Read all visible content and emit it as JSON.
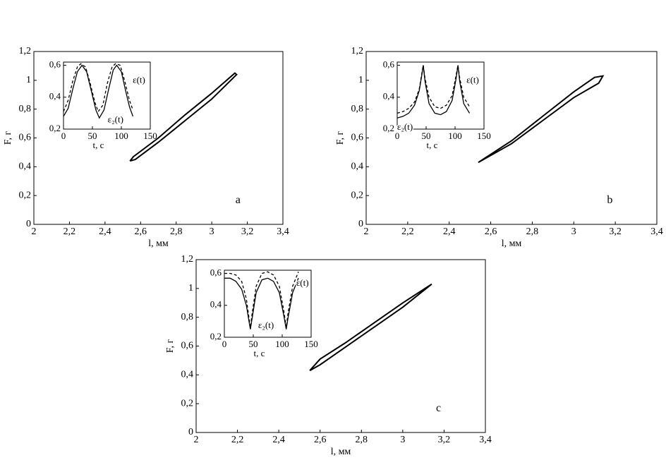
{
  "chart_data": [
    {
      "type": "line",
      "label": "a",
      "xlabel": "l, мм",
      "ylabel": "F, г",
      "xlim": [
        2,
        3.4
      ],
      "ylim": [
        0,
        1.2
      ],
      "xticks": [
        2,
        {
          "value": 2.2,
          "label": "2,2"
        },
        {
          "value": 2.4,
          "label": "2,4"
        },
        {
          "value": 2.6,
          "label": "2,6"
        },
        {
          "value": 2.8,
          "label": "2,8"
        },
        3,
        {
          "value": 3.2,
          "label": "3,2"
        },
        {
          "value": 3.4,
          "label": "3,4"
        }
      ],
      "yticks": [
        0,
        {
          "value": 0.2,
          "label": "0,2"
        },
        {
          "value": 0.4,
          "label": "0,4"
        },
        {
          "value": 0.6,
          "label": "0,6"
        },
        {
          "value": 0.8,
          "label": "0,8"
        },
        1,
        {
          "value": 1.2,
          "label": "1,2"
        }
      ],
      "series": [
        {
          "color": "#000000",
          "x": [
            2.54,
            2.56,
            2.7,
            2.85,
            3.0,
            3.13,
            3.14,
            3.0,
            2.85,
            2.7,
            2.57,
            2.54
          ],
          "values": [
            0.44,
            0.47,
            0.6,
            0.76,
            0.91,
            1.05,
            1.04,
            0.87,
            0.72,
            0.57,
            0.45,
            0.44
          ]
        }
      ],
      "inset": {
        "type": "line",
        "xlabel": "t, c",
        "xlim": [
          0,
          150
        ],
        "ylim": [
          0.2,
          0.62
        ],
        "xticks": [
          0,
          50,
          100,
          150
        ],
        "yticks": [
          {
            "value": 0.2,
            "label": "0,2"
          },
          {
            "value": 0.4,
            "label": "0,4"
          },
          {
            "value": 0.6,
            "label": "0,6"
          }
        ],
        "series": [
          {
            "name": "ε(t)",
            "color": "#000000",
            "dash": false,
            "x": [
              0,
              8,
              16,
              24,
              32,
              40,
              48,
              56,
              62,
              70,
              78,
              86,
              92,
              100,
              108,
              114,
              120
            ],
            "values": [
              0.28,
              0.33,
              0.45,
              0.56,
              0.6,
              0.56,
              0.44,
              0.32,
              0.27,
              0.32,
              0.45,
              0.57,
              0.6,
              0.56,
              0.43,
              0.34,
              0.28
            ]
          },
          {
            "name": "ε₂(t)",
            "color": "#000000",
            "dash": true,
            "x": [
              0,
              8,
              16,
              24,
              30,
              38,
              46,
              54,
              60,
              68,
              76,
              84,
              90,
              98,
              106,
              114,
              120
            ],
            "values": [
              0.31,
              0.38,
              0.5,
              0.59,
              0.61,
              0.59,
              0.49,
              0.37,
              0.31,
              0.35,
              0.49,
              0.59,
              0.61,
              0.6,
              0.5,
              0.38,
              0.32
            ]
          }
        ]
      }
    },
    {
      "type": "line",
      "label": "b",
      "xlabel": "l, мм",
      "ylabel": "F, г",
      "xlim": [
        2,
        3.4
      ],
      "ylim": [
        0,
        1.2
      ],
      "xticks": [
        2,
        {
          "value": 2.2,
          "label": "2,2"
        },
        {
          "value": 2.4,
          "label": "2,4"
        },
        {
          "value": 2.6,
          "label": "2,6"
        },
        {
          "value": 2.8,
          "label": "2,8"
        },
        3,
        {
          "value": 3.2,
          "label": "3,2"
        },
        {
          "value": 3.4,
          "label": "3,4"
        }
      ],
      "yticks": [
        0,
        {
          "value": 0.2,
          "label": "0,2"
        },
        {
          "value": 0.4,
          "label": "0,4"
        },
        {
          "value": 0.6,
          "label": "0,6"
        },
        {
          "value": 0.8,
          "label": "0,8"
        },
        1,
        {
          "value": 1.2,
          "label": "1,2"
        }
      ],
      "series": [
        {
          "color": "#000000",
          "x": [
            2.54,
            2.7,
            2.85,
            3.0,
            3.1,
            3.14,
            3.12,
            3.0,
            2.85,
            2.7,
            2.54
          ],
          "values": [
            0.43,
            0.58,
            0.75,
            0.92,
            1.02,
            1.03,
            0.98,
            0.88,
            0.72,
            0.56,
            0.43
          ]
        }
      ],
      "inset": {
        "type": "line",
        "xlabel": "t, c",
        "xlim": [
          0,
          150
        ],
        "ylim": [
          0.2,
          0.62
        ],
        "xticks": [
          0,
          50,
          100,
          150
        ],
        "yticks": [
          {
            "value": 0.2,
            "label": "0,2"
          },
          {
            "value": 0.4,
            "label": "0,4"
          },
          {
            "value": 0.6,
            "label": "0,6"
          }
        ],
        "series": [
          {
            "name": "ε(t)",
            "color": "#000000",
            "dash": false,
            "x": [
              0,
              10,
              20,
              30,
              38,
              43,
              45,
              48,
              55,
              65,
              75,
              85,
              95,
              102,
              105,
              108,
              115,
              125
            ],
            "values": [
              0.27,
              0.28,
              0.3,
              0.35,
              0.44,
              0.55,
              0.6,
              0.5,
              0.36,
              0.3,
              0.29,
              0.31,
              0.38,
              0.52,
              0.6,
              0.5,
              0.36,
              0.3
            ]
          },
          {
            "name": "ε₂(t)",
            "color": "#000000",
            "dash": true,
            "x": [
              0,
              10,
              20,
              30,
              38,
              43,
              45,
              48,
              55,
              65,
              75,
              85,
              95,
              102,
              105,
              108,
              115,
              125
            ],
            "values": [
              0.3,
              0.31,
              0.33,
              0.37,
              0.45,
              0.56,
              0.6,
              0.52,
              0.4,
              0.34,
              0.33,
              0.35,
              0.41,
              0.54,
              0.6,
              0.52,
              0.4,
              0.34
            ]
          }
        ]
      }
    },
    {
      "type": "line",
      "label": "c",
      "xlabel": "l, мм",
      "ylabel": "F, г",
      "xlim": [
        2,
        3.4
      ],
      "ylim": [
        0,
        1.2
      ],
      "xticks": [
        2,
        {
          "value": 2.2,
          "label": "2,2"
        },
        {
          "value": 2.4,
          "label": "2,4"
        },
        {
          "value": 2.6,
          "label": "2,6"
        },
        {
          "value": 2.8,
          "label": "2,8"
        },
        3,
        {
          "value": 3.2,
          "label": "3,2"
        },
        {
          "value": 3.4,
          "label": "3,4"
        }
      ],
      "yticks": [
        0,
        {
          "value": 0.2,
          "label": "0,2"
        },
        {
          "value": 0.4,
          "label": "0,4"
        },
        {
          "value": 0.6,
          "label": "0,6"
        },
        {
          "value": 0.8,
          "label": "0,8"
        },
        1,
        {
          "value": 1.2,
          "label": "1,2"
        }
      ],
      "series": [
        {
          "color": "#000000",
          "x": [
            2.55,
            2.6,
            2.72,
            2.88,
            3.0,
            3.14,
            3.0,
            2.88,
            2.75,
            2.6,
            2.55
          ],
          "values": [
            0.43,
            0.51,
            0.62,
            0.78,
            0.9,
            1.03,
            0.87,
            0.75,
            0.62,
            0.47,
            0.43
          ]
        }
      ],
      "inset": {
        "type": "line",
        "xlabel": "t, c",
        "xlim": [
          0,
          150
        ],
        "ylim": [
          0.2,
          0.62
        ],
        "xticks": [
          0,
          50,
          100,
          150
        ],
        "yticks": [
          {
            "value": 0.2,
            "label": "0,2"
          },
          {
            "value": 0.4,
            "label": "0,4"
          },
          {
            "value": 0.6,
            "label": "0,6"
          }
        ],
        "series": [
          {
            "name": "ε(t)",
            "color": "#000000",
            "dash": false,
            "x": [
              0,
              10,
              20,
              30,
              38,
              43,
              45,
              48,
              55,
              65,
              75,
              85,
              95,
              103,
              107,
              110,
              118,
              128
            ],
            "values": [
              0.57,
              0.57,
              0.55,
              0.5,
              0.4,
              0.29,
              0.25,
              0.32,
              0.48,
              0.56,
              0.57,
              0.55,
              0.48,
              0.33,
              0.25,
              0.32,
              0.48,
              0.57
            ]
          },
          {
            "name": "ε₂(t)",
            "color": "#000000",
            "dash": true,
            "x": [
              0,
              10,
              20,
              30,
              38,
              43,
              45,
              48,
              55,
              65,
              75,
              85,
              95,
              103,
              107,
              110,
              118,
              128
            ],
            "values": [
              0.6,
              0.6,
              0.59,
              0.55,
              0.44,
              0.31,
              0.26,
              0.35,
              0.52,
              0.6,
              0.61,
              0.59,
              0.52,
              0.36,
              0.26,
              0.35,
              0.52,
              0.61
            ]
          }
        ]
      }
    }
  ]
}
